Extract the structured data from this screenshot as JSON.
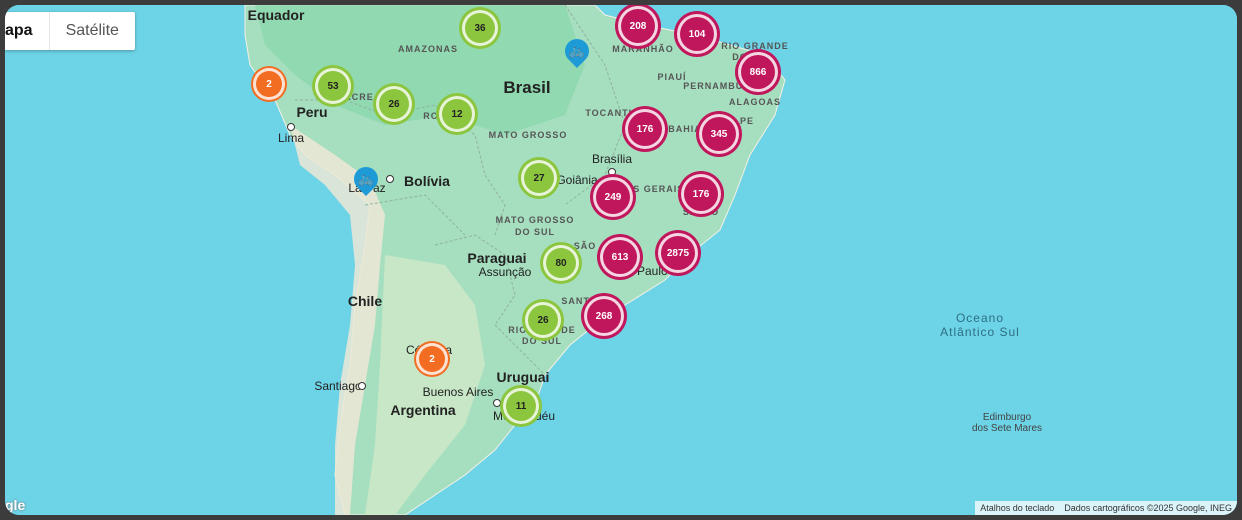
{
  "map_type": {
    "active": "apa",
    "inactive": "Satélite"
  },
  "labels": {
    "countries": [
      {
        "id": "brasil",
        "text": "Brasil"
      },
      {
        "id": "peru",
        "text": "Peru"
      },
      {
        "id": "bolivia",
        "text": "Bolívia"
      },
      {
        "id": "paraguai",
        "text": "Paraguai"
      },
      {
        "id": "chile",
        "text": "Chile"
      },
      {
        "id": "uruguai",
        "text": "Uruguai"
      },
      {
        "id": "argentina",
        "text": "Argentina"
      },
      {
        "id": "equador",
        "text": "Equador"
      }
    ],
    "states": [
      {
        "id": "amazonas",
        "text": "AMAZONAS"
      },
      {
        "id": "acre",
        "text": "ACRE"
      },
      {
        "id": "rondonia",
        "text": "RO"
      },
      {
        "id": "maranhao",
        "text": "MARANHÃO"
      },
      {
        "id": "rgn",
        "text": "RIO GRANDE"
      },
      {
        "id": "rgn2",
        "text": "DO"
      },
      {
        "id": "piaui",
        "text": "PIAUÍ"
      },
      {
        "id": "pernambuco",
        "text": "PERNAMBUCO"
      },
      {
        "id": "alagoas",
        "text": "ALAGOAS"
      },
      {
        "id": "tocantins",
        "text": "TOCANTINS"
      },
      {
        "id": "bahia",
        "text": "BAHIA"
      },
      {
        "id": "sergipe",
        "text": "PE"
      },
      {
        "id": "mato_grosso",
        "text": "MATO GROSSO"
      },
      {
        "id": "mato_grosso_sul",
        "text": "MATO GROSSO"
      },
      {
        "id": "mato_grosso_sul2",
        "text": "DO SUL"
      },
      {
        "id": "minas",
        "text": "AS GERAIS"
      },
      {
        "id": "santo",
        "text": "SANTO"
      },
      {
        "id": "sao",
        "text": "SÃO"
      },
      {
        "id": "santa",
        "text": "SANTA"
      },
      {
        "id": "rio_sul",
        "text": "RIO GRANDE"
      },
      {
        "id": "rio_sul2",
        "text": "DO SUL"
      }
    ],
    "cities": [
      {
        "id": "lima",
        "text": "Lima"
      },
      {
        "id": "la_paz",
        "text": "La Paz"
      },
      {
        "id": "brasilia",
        "text": "Brasília"
      },
      {
        "id": "goiania",
        "text": "Goiânia"
      },
      {
        "id": "assuncao",
        "text": "Assunção"
      },
      {
        "id": "santiago",
        "text": "Santiago"
      },
      {
        "id": "cordoba",
        "text": "Córdoba"
      },
      {
        "id": "buenos_aires",
        "text": "Buenos Aires"
      },
      {
        "id": "montevideu",
        "text": "Montevidéu"
      },
      {
        "id": "sao_paulo",
        "text": "São Paulo"
      }
    ],
    "ocean": {
      "line1": "Oceano",
      "line2": "Atlântico Sul"
    },
    "island": {
      "line1": "Edimburgo",
      "line2": "dos Sete Mares"
    }
  },
  "clusters": [
    {
      "id": "c36",
      "count": "36",
      "color": "green"
    },
    {
      "id": "c53",
      "count": "53",
      "color": "green"
    },
    {
      "id": "c26a",
      "count": "26",
      "color": "green"
    },
    {
      "id": "c12",
      "count": "12",
      "color": "green"
    },
    {
      "id": "c27",
      "count": "27",
      "color": "green"
    },
    {
      "id": "c80",
      "count": "80",
      "color": "green"
    },
    {
      "id": "c26b",
      "count": "26",
      "color": "green"
    },
    {
      "id": "c11",
      "count": "11",
      "color": "green"
    },
    {
      "id": "c2a",
      "count": "2",
      "color": "orange"
    },
    {
      "id": "c2b",
      "count": "2",
      "color": "orange"
    },
    {
      "id": "c208",
      "count": "208",
      "color": "magenta"
    },
    {
      "id": "c104",
      "count": "104",
      "color": "magenta"
    },
    {
      "id": "c866",
      "count": "866",
      "color": "magenta"
    },
    {
      "id": "c176a",
      "count": "176",
      "color": "magenta"
    },
    {
      "id": "c345",
      "count": "345",
      "color": "magenta"
    },
    {
      "id": "c249",
      "count": "249",
      "color": "magenta"
    },
    {
      "id": "c176b",
      "count": "176",
      "color": "magenta"
    },
    {
      "id": "c613",
      "count": "613",
      "color": "magenta"
    },
    {
      "id": "c2875",
      "count": "2875",
      "color": "magenta"
    },
    {
      "id": "c268",
      "count": "268",
      "color": "magenta"
    }
  ],
  "pins": [
    {
      "id": "pin-para",
      "icon": "bicycle-icon"
    },
    {
      "id": "pin-lapaz",
      "icon": "bicycle-icon"
    }
  ],
  "attribution": {
    "shortcuts": "Atalhos do teclado",
    "data": "Dados cartográficos ©2025 Google, INEG"
  },
  "logo": "gle",
  "colors": {
    "water": "#6dd3e6",
    "land": "#a8e0c0",
    "cluster_green": "#8cc63f",
    "cluster_magenta": "#c0175c",
    "cluster_orange": "#f26c22",
    "pin": "#1e9bd7"
  }
}
